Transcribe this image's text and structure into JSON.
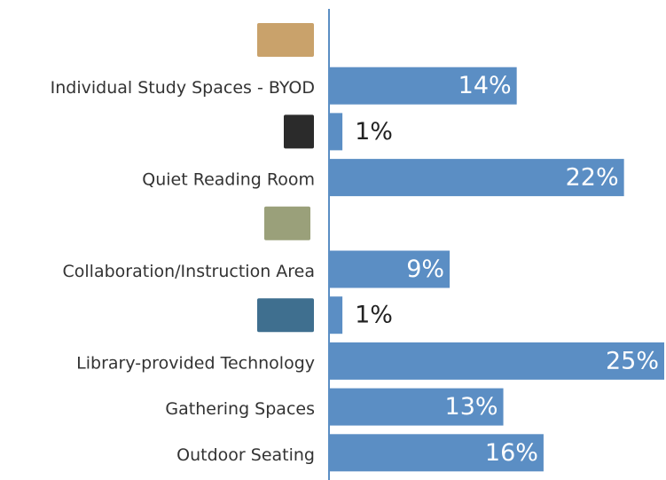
{
  "chart_data": {
    "type": "bar",
    "orientation": "horizontal",
    "categories": [
      null,
      "Individual Study Spaces - BYOD",
      null,
      "Quiet Reading Room",
      null,
      "Collaboration/Instruction Area",
      null,
      "Library-provided Technology",
      "Gathering Spaces",
      "Outdoor Seating"
    ],
    "values": [
      null,
      14,
      1,
      22,
      null,
      9,
      1,
      25,
      13,
      16
    ],
    "value_labels": [
      null,
      "14%",
      "1%",
      "22%",
      null,
      "9%",
      "1%",
      "25%",
      "13%",
      "16%"
    ],
    "color": "#5b8ec4",
    "xlim": [
      0,
      25
    ]
  }
}
